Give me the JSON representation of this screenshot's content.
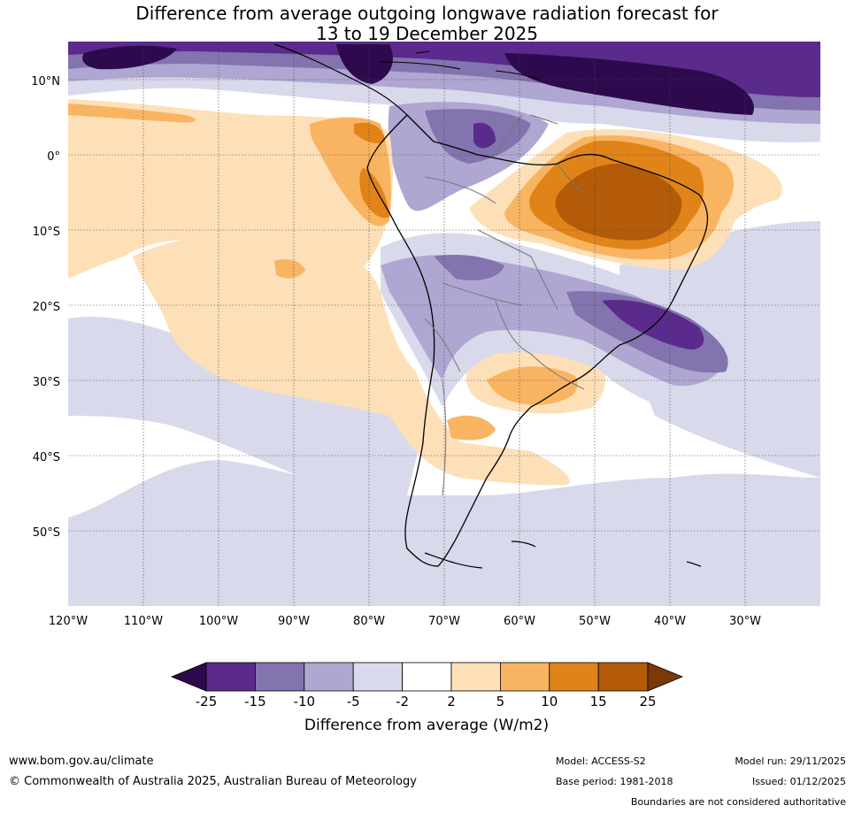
{
  "title": {
    "line1": "Difference from average outgoing longwave radiation forecast for",
    "line2": "13 to 19 December 2025"
  },
  "map": {
    "region": "South America",
    "lat_labels": [
      "10°N",
      "0°",
      "10°S",
      "20°S",
      "30°S",
      "40°S",
      "50°S"
    ],
    "lon_labels": [
      "120°W",
      "110°W",
      "100°W",
      "90°W",
      "80°W",
      "70°W",
      "60°W",
      "50°W",
      "40°W",
      "30°W"
    ]
  },
  "legend": {
    "title": "Difference from average (W/m2)",
    "ticks": [
      "-25",
      "-15",
      "-10",
      "-5",
      "-2",
      "2",
      "5",
      "10",
      "15",
      "25"
    ],
    "colors": {
      "lt_neg25": "#2d0a4e",
      "neg25_neg15": "#5a2a8c",
      "neg15_neg10": "#8373ae",
      "neg10_neg5": "#afa7d1",
      "neg5_neg2": "#d9d9ec",
      "neg2_2": "#ffffff",
      "pos2_5": "#fde0b8",
      "pos5_10": "#f9b462",
      "pos10_15": "#e08419",
      "pos15_25": "#b35b09",
      "gt_25": "#7a3a06"
    }
  },
  "footer": {
    "website": "www.bom.gov.au/climate",
    "copyright": "© Commonwealth of Australia 2025, Australian Bureau of Meteorology",
    "model": "Model: ACCESS-S2",
    "base_period": "Base period: 1981-2018",
    "model_run": "Model run: 29/11/2025",
    "issued": "Issued: 01/12/2025",
    "disclaimer": "Boundaries are not considered authoritative"
  }
}
